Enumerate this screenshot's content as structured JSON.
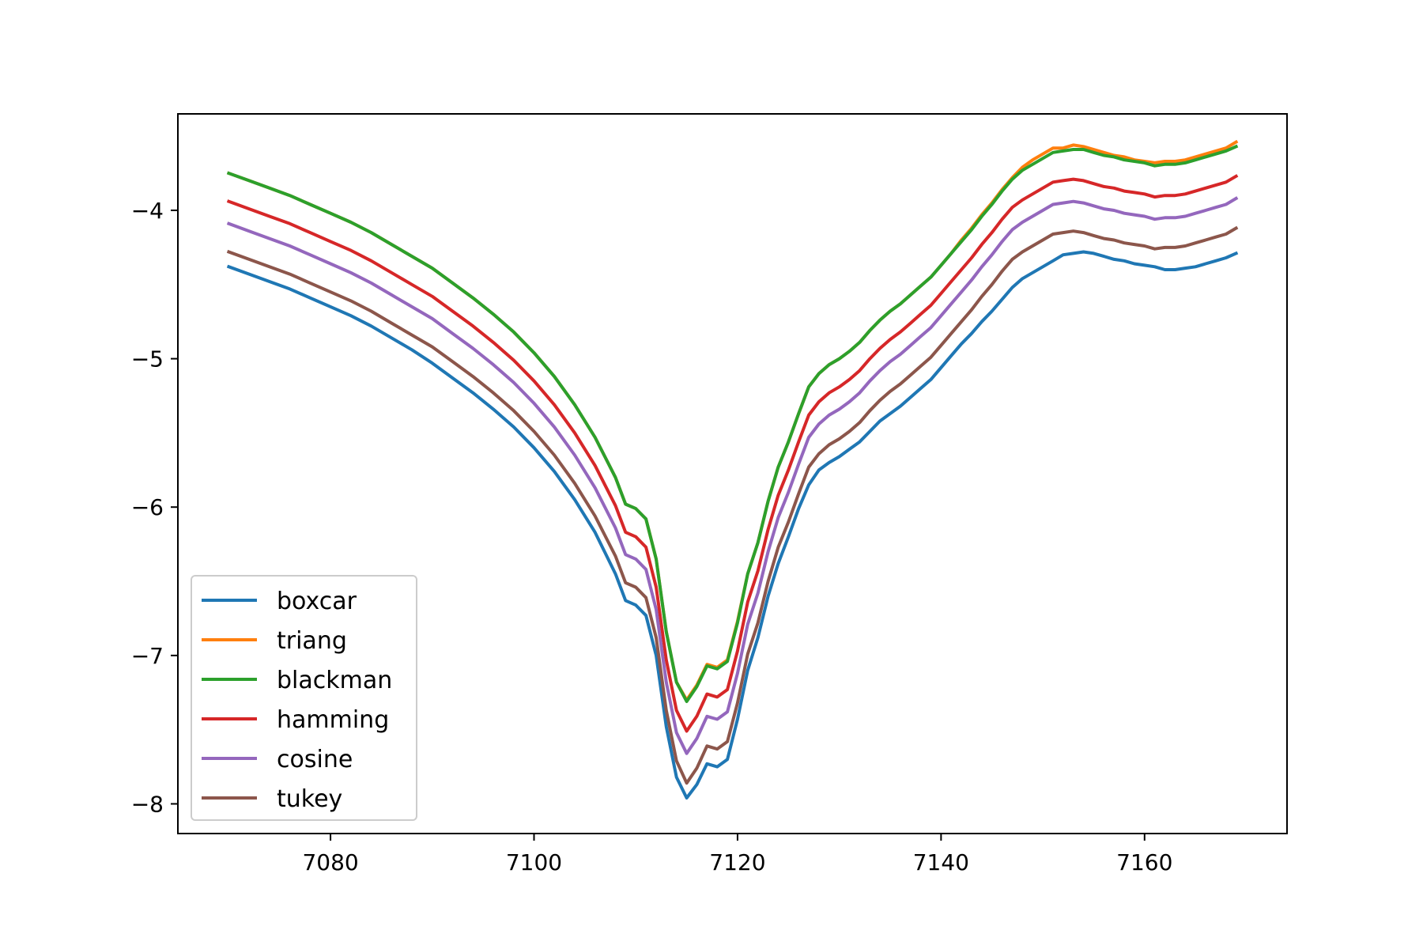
{
  "chart_data": {
    "type": "line",
    "title": "",
    "xlabel": "",
    "ylabel": "",
    "xlim": [
      7065,
      7174
    ],
    "ylim": [
      -8.2,
      -3.35
    ],
    "xticks": [
      7080,
      7100,
      7120,
      7140,
      7160
    ],
    "yticks": [
      -4,
      -5,
      -6,
      -7,
      -8
    ],
    "legend": "lower-left",
    "grid": false,
    "x": [
      7070,
      7072,
      7074,
      7076,
      7078,
      7080,
      7082,
      7084,
      7086,
      7088,
      7090,
      7092,
      7094,
      7096,
      7098,
      7100,
      7102,
      7104,
      7106,
      7108,
      7109,
      7110,
      7111,
      7112,
      7113,
      7114,
      7115,
      7116,
      7117,
      7118,
      7119,
      7120,
      7121,
      7122,
      7123,
      7124,
      7125,
      7126,
      7127,
      7128,
      7129,
      7130,
      7131,
      7132,
      7133,
      7134,
      7135,
      7136,
      7137,
      7138,
      7139,
      7140,
      7141,
      7142,
      7143,
      7144,
      7145,
      7146,
      7147,
      7148,
      7149,
      7150,
      7151,
      7152,
      7153,
      7154,
      7155,
      7156,
      7157,
      7158,
      7159,
      7160,
      7161,
      7162,
      7163,
      7164,
      7165,
      7166,
      7167,
      7168,
      7169
    ],
    "series": [
      {
        "name": "boxcar",
        "color": "#1f77b4",
        "values": [
          -4.38,
          -4.43,
          -4.48,
          -4.53,
          -4.59,
          -4.65,
          -4.71,
          -4.78,
          -4.86,
          -4.94,
          -5.03,
          -5.13,
          -5.23,
          -5.34,
          -5.46,
          -5.6,
          -5.76,
          -5.95,
          -6.17,
          -6.45,
          -6.63,
          -6.66,
          -6.73,
          -7.0,
          -7.48,
          -7.82,
          -7.96,
          -7.87,
          -7.73,
          -7.75,
          -7.7,
          -7.43,
          -7.1,
          -6.88,
          -6.6,
          -6.38,
          -6.2,
          -6.01,
          -5.85,
          -5.75,
          -5.7,
          -5.66,
          -5.61,
          -5.56,
          -5.49,
          -5.42,
          -5.37,
          -5.32,
          -5.26,
          -5.2,
          -5.14,
          -5.06,
          -4.98,
          -4.9,
          -4.83,
          -4.75,
          -4.68,
          -4.6,
          -4.52,
          -4.46,
          -4.42,
          -4.38,
          -4.34,
          -4.3,
          -4.29,
          -4.28,
          -4.29,
          -4.31,
          -4.33,
          -4.34,
          -4.36,
          -4.37,
          -4.38,
          -4.4,
          -4.4,
          -4.39,
          -4.38,
          -4.36,
          -4.34,
          -4.32,
          -4.29
        ]
      },
      {
        "name": "triang",
        "color": "#ff7f0e",
        "values": [
          -3.75,
          -3.8,
          -3.85,
          -3.9,
          -3.96,
          -4.02,
          -4.08,
          -4.15,
          -4.23,
          -4.31,
          -4.39,
          -4.49,
          -4.59,
          -4.7,
          -4.82,
          -4.96,
          -5.12,
          -5.31,
          -5.53,
          -5.8,
          -5.98,
          -6.01,
          -6.08,
          -6.35,
          -6.84,
          -7.18,
          -7.3,
          -7.2,
          -7.06,
          -7.08,
          -7.03,
          -6.77,
          -6.45,
          -6.24,
          -5.96,
          -5.73,
          -5.56,
          -5.37,
          -5.19,
          -5.1,
          -5.04,
          -5.0,
          -4.95,
          -4.89,
          -4.81,
          -4.74,
          -4.68,
          -4.63,
          -4.57,
          -4.51,
          -4.45,
          -4.37,
          -4.29,
          -4.2,
          -4.12,
          -4.03,
          -3.95,
          -3.86,
          -3.78,
          -3.71,
          -3.66,
          -3.62,
          -3.58,
          -3.58,
          -3.56,
          -3.57,
          -3.59,
          -3.61,
          -3.63,
          -3.64,
          -3.66,
          -3.67,
          -3.68,
          -3.67,
          -3.67,
          -3.66,
          -3.64,
          -3.62,
          -3.6,
          -3.58,
          -3.54
        ]
      },
      {
        "name": "blackman",
        "color": "#2ca02c",
        "values": [
          -3.75,
          -3.8,
          -3.85,
          -3.9,
          -3.96,
          -4.02,
          -4.08,
          -4.15,
          -4.23,
          -4.31,
          -4.39,
          -4.49,
          -4.59,
          -4.7,
          -4.82,
          -4.96,
          -5.12,
          -5.31,
          -5.53,
          -5.8,
          -5.98,
          -6.01,
          -6.08,
          -6.35,
          -6.84,
          -7.18,
          -7.31,
          -7.21,
          -7.07,
          -7.09,
          -7.04,
          -6.78,
          -6.45,
          -6.24,
          -5.96,
          -5.73,
          -5.56,
          -5.37,
          -5.19,
          -5.1,
          -5.04,
          -5.0,
          -4.95,
          -4.89,
          -4.81,
          -4.74,
          -4.68,
          -4.63,
          -4.57,
          -4.51,
          -4.45,
          -4.37,
          -4.29,
          -4.21,
          -4.13,
          -4.04,
          -3.96,
          -3.87,
          -3.79,
          -3.73,
          -3.69,
          -3.65,
          -3.61,
          -3.6,
          -3.59,
          -3.59,
          -3.61,
          -3.63,
          -3.64,
          -3.66,
          -3.67,
          -3.68,
          -3.7,
          -3.69,
          -3.69,
          -3.68,
          -3.66,
          -3.64,
          -3.62,
          -3.6,
          -3.57
        ]
      },
      {
        "name": "hamming",
        "color": "#d62728",
        "values": [
          -3.94,
          -3.99,
          -4.04,
          -4.09,
          -4.15,
          -4.21,
          -4.27,
          -4.34,
          -4.42,
          -4.5,
          -4.58,
          -4.68,
          -4.78,
          -4.89,
          -5.01,
          -5.15,
          -5.31,
          -5.5,
          -5.72,
          -5.99,
          -6.17,
          -6.2,
          -6.27,
          -6.54,
          -7.03,
          -7.37,
          -7.51,
          -7.41,
          -7.26,
          -7.28,
          -7.23,
          -6.97,
          -6.64,
          -6.43,
          -6.15,
          -5.92,
          -5.75,
          -5.56,
          -5.38,
          -5.29,
          -5.23,
          -5.19,
          -5.14,
          -5.08,
          -5.0,
          -4.93,
          -4.87,
          -4.82,
          -4.76,
          -4.7,
          -4.64,
          -4.56,
          -4.48,
          -4.4,
          -4.32,
          -4.23,
          -4.15,
          -4.06,
          -3.98,
          -3.93,
          -3.89,
          -3.85,
          -3.81,
          -3.8,
          -3.79,
          -3.8,
          -3.82,
          -3.84,
          -3.85,
          -3.87,
          -3.88,
          -3.89,
          -3.91,
          -3.9,
          -3.9,
          -3.89,
          -3.87,
          -3.85,
          -3.83,
          -3.81,
          -3.77
        ]
      },
      {
        "name": "cosine",
        "color": "#9467bd",
        "values": [
          -4.09,
          -4.14,
          -4.19,
          -4.24,
          -4.3,
          -4.36,
          -4.42,
          -4.49,
          -4.57,
          -4.65,
          -4.73,
          -4.83,
          -4.93,
          -5.04,
          -5.16,
          -5.3,
          -5.46,
          -5.65,
          -5.87,
          -6.14,
          -6.32,
          -6.35,
          -6.42,
          -6.69,
          -7.18,
          -7.52,
          -7.66,
          -7.56,
          -7.41,
          -7.43,
          -7.38,
          -7.12,
          -6.79,
          -6.58,
          -6.3,
          -6.07,
          -5.9,
          -5.71,
          -5.53,
          -5.44,
          -5.38,
          -5.34,
          -5.29,
          -5.23,
          -5.15,
          -5.08,
          -5.02,
          -4.97,
          -4.91,
          -4.85,
          -4.79,
          -4.71,
          -4.63,
          -4.55,
          -4.47,
          -4.38,
          -4.3,
          -4.21,
          -4.13,
          -4.08,
          -4.04,
          -4.0,
          -3.96,
          -3.95,
          -3.94,
          -3.95,
          -3.97,
          -3.99,
          -4.0,
          -4.02,
          -4.03,
          -4.04,
          -4.06,
          -4.05,
          -4.05,
          -4.04,
          -4.02,
          -4.0,
          -3.98,
          -3.96,
          -3.92
        ]
      },
      {
        "name": "tukey",
        "color": "#8c564b",
        "values": [
          -4.28,
          -4.33,
          -4.38,
          -4.43,
          -4.49,
          -4.55,
          -4.61,
          -4.68,
          -4.76,
          -4.84,
          -4.92,
          -5.02,
          -5.12,
          -5.23,
          -5.35,
          -5.49,
          -5.65,
          -5.84,
          -6.06,
          -6.33,
          -6.51,
          -6.54,
          -6.61,
          -6.88,
          -7.37,
          -7.71,
          -7.86,
          -7.76,
          -7.61,
          -7.63,
          -7.58,
          -7.32,
          -6.99,
          -6.78,
          -6.5,
          -6.27,
          -6.1,
          -5.91,
          -5.73,
          -5.64,
          -5.58,
          -5.54,
          -5.49,
          -5.43,
          -5.35,
          -5.28,
          -5.22,
          -5.17,
          -5.11,
          -5.05,
          -4.99,
          -4.91,
          -4.83,
          -4.75,
          -4.67,
          -4.58,
          -4.5,
          -4.41,
          -4.33,
          -4.28,
          -4.24,
          -4.2,
          -4.16,
          -4.15,
          -4.14,
          -4.15,
          -4.17,
          -4.19,
          -4.2,
          -4.22,
          -4.23,
          -4.24,
          -4.26,
          -4.25,
          -4.25,
          -4.24,
          -4.22,
          -4.2,
          -4.18,
          -4.16,
          -4.12
        ]
      }
    ]
  }
}
